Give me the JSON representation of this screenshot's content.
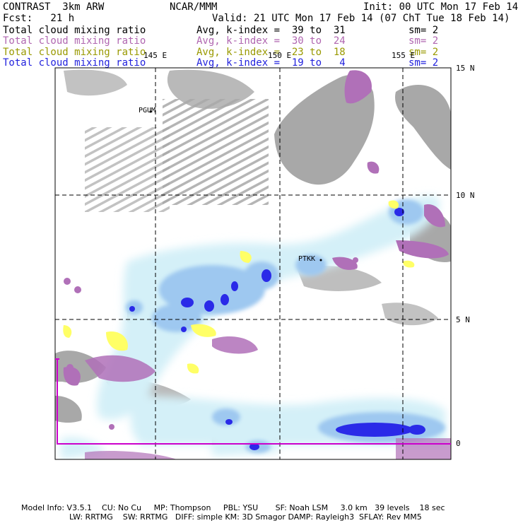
{
  "header": {
    "left_title": "CONTRAST  3km ARW",
    "center_title": "NCAR/MMM",
    "init": "Init: 00 UTC Mon 17 Feb 14",
    "fcst": "Fcst:   21 h",
    "valid": "Valid: 21 UTC Mon 17 Feb 14 (07 ChT Tue 18 Feb 14)"
  },
  "fields": [
    {
      "name": "Total cloud mixing ratio",
      "avg": "Avg, k-index =  39 to  31",
      "sm": "sm= 2",
      "color": "#000000"
    },
    {
      "name": "Total cloud mixing ratio",
      "avg": "Avg, k-index =  30 to  24",
      "sm": "sm= 2",
      "color": "#b066b0"
    },
    {
      "name": "Total cloud mixing ratio",
      "avg": "Avg, k-index =  23 to  18",
      "sm": "sm= 2",
      "color": "#999900"
    },
    {
      "name": "Total cloud mixing ratio",
      "avg": "Avg, k-index =  19 to   4",
      "sm": "sm= 2",
      "color": "#2222dd"
    }
  ],
  "map": {
    "lon_labels": [
      "145 E",
      "150 E",
      "155 E"
    ],
    "lat_labels": [
      "15 N",
      "10 N",
      "5 N",
      "0"
    ],
    "stations": [
      "PGUM",
      "PTKK"
    ],
    "colors": {
      "gray_cloud": "#a8a8a8",
      "purple_cloud": "#b070b8",
      "yellow_cloud": "#ffff66",
      "light_blue": "#d4f0f8",
      "mid_blue": "#9ec8f0",
      "deep_blue": "#2a2ae8",
      "border": "#cc00cc"
    }
  },
  "footer": {
    "line1": "Model Info: V3.5.1    CU: No Cu     MP: Thompson     PBL: YSU       SF: Noah LSM     3.0 km   39 levels    18 sec",
    "line2": "LW: RRTMG    SW: RRTMG   DIFF: simple KM: 3D Smagor DAMP: Rayleigh3  SFLAY: Rev MM5"
  }
}
